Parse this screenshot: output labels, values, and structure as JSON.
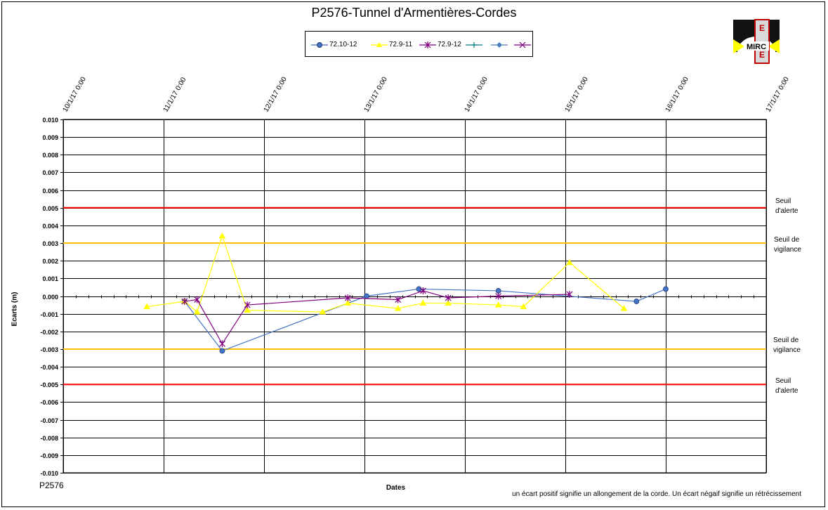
{
  "chart_data": {
    "type": "line",
    "title": "P2576-Tunnel  d'Armentières-Cordes",
    "xlabel": "Dates",
    "ylabel": "Ecarts (m)",
    "x_ticks": [
      "10/1/17 0:00",
      "11/1/17 0:00",
      "12/1/17 0:00",
      "13/1/17 0:00",
      "14/1/17 0:00",
      "15/1/17 0:00",
      "16/1/17 0:00",
      "17/1/17 0:00"
    ],
    "y_ticks": [
      "0.010",
      "0.009",
      "0.008",
      "0.007",
      "0.006",
      "0.005",
      "0.004",
      "0.003",
      "0.002",
      "0.001",
      "0.000",
      "-0.001",
      "-0.002",
      "-0.003",
      "-0.004",
      "-0.005",
      "-0.006",
      "-0.007",
      "-0.008",
      "-0.009",
      "-0.010"
    ],
    "xlim": [
      "10/1/17 0:00",
      "17/1/17 0:00"
    ],
    "ylim": [
      -0.01,
      0.01
    ],
    "grid": true,
    "legend_position": "top-center",
    "series": [
      {
        "name": "72.10-12",
        "color": "#4472C4",
        "marker": "circle",
        "points": [
          [
            "11/1/17 5:00",
            -0.0003
          ],
          [
            "11/1/17 14:00",
            -0.0031
          ],
          [
            "13/1/17 0:30",
            0.0
          ],
          [
            "13/1/17 13:00",
            0.0004
          ],
          [
            "14/1/17 8:00",
            0.0003
          ],
          [
            "15/1/17 17:00",
            -0.0003
          ],
          [
            "16/1/17 0:00",
            0.0004
          ]
        ]
      },
      {
        "name": "72.9-11",
        "color": "#FFFF00",
        "marker": "triangle",
        "points": [
          [
            "10/1/17 20:00",
            -0.0006
          ],
          [
            "11/1/17 5:00",
            -0.0003
          ],
          [
            "11/1/17 8:00",
            -0.0009
          ],
          [
            "11/1/17 14:00",
            0.0034
          ],
          [
            "11/1/17 20:00",
            -0.0008
          ],
          [
            "12/1/17 14:00",
            -0.0009
          ],
          [
            "12/1/17 20:00",
            -0.0004
          ],
          [
            "13/1/17 8:00",
            -0.0007
          ],
          [
            "13/1/17 14:00",
            -0.0004
          ],
          [
            "13/1/17 20:00",
            -0.0004
          ],
          [
            "14/1/17 8:00",
            -0.0005
          ],
          [
            "14/1/17 14:00",
            -0.0006
          ],
          [
            "15/1/17 1:00",
            0.0019
          ],
          [
            "15/1/17 14:00",
            -0.0007
          ]
        ]
      },
      {
        "name": "72.9-12",
        "color": "#800080",
        "marker": "star",
        "points": [
          [
            "11/1/17 5:00",
            -0.0003
          ],
          [
            "11/1/17 8:00",
            -0.0002
          ],
          [
            "11/1/17 14:00",
            -0.0027
          ],
          [
            "11/1/17 20:00",
            -0.0005
          ],
          [
            "12/1/17 20:00",
            -0.0001
          ],
          [
            "13/1/17 8:00",
            -0.0002
          ],
          [
            "13/1/17 14:00",
            0.0003
          ],
          [
            "13/1/17 20:00",
            -0.0001
          ],
          [
            "14/1/17 8:00",
            0.0
          ],
          [
            "15/1/17 1:00",
            0.0001
          ]
        ]
      },
      {
        "color": "#008080",
        "marker": "plus",
        "points": []
      },
      {
        "color": "#4A7EBB",
        "marker": "diamond",
        "points": []
      },
      {
        "color": "#800080",
        "marker": "x",
        "points": []
      }
    ],
    "thresholds": [
      {
        "value": 0.005,
        "color": "#FF0000",
        "label": "Seuil\nd'alerte"
      },
      {
        "value": 0.003,
        "color": "#FFC000",
        "label": "Seuil de\nvigilance"
      },
      {
        "value": -0.003,
        "color": "#FFC000",
        "label": "Seuil de\nvigilance"
      },
      {
        "value": -0.005,
        "color": "#FF0000",
        "label": "Seuil\nd'alerte"
      }
    ]
  },
  "labels": {
    "title": "P2576-Tunnel  d'Armentières-Cordes",
    "xlabel": "Dates",
    "ylabel": "Ecarts (m)",
    "corner_id": "P2576",
    "footnote": "un écart positif signifie un allongement  de la corde.  Un écart négaif signifie  un rétrécissement",
    "threshold_alert_top": "Seuil\nd'alerte",
    "threshold_vigilance_top": "Seuil de\nvigilance",
    "threshold_vigilance_bottom": "Seuil de\nvigilance",
    "threshold_alert_bottom": "Seuil\nd'alerte",
    "logo_text": "MIRC"
  },
  "legend": [
    {
      "name": "72.10-12",
      "color": "#4472C4",
      "marker": "circle"
    },
    {
      "name": "72.9-11",
      "color": "#FFFF00",
      "marker": "triangle"
    },
    {
      "name": "72.9-12",
      "color": "#800080",
      "marker": "star"
    },
    {
      "name": "",
      "color": "#008080",
      "marker": "plus"
    },
    {
      "name": "",
      "color": "#4A7EBB",
      "marker": "diamond"
    },
    {
      "name": "",
      "color": "#800080",
      "marker": "x"
    }
  ]
}
